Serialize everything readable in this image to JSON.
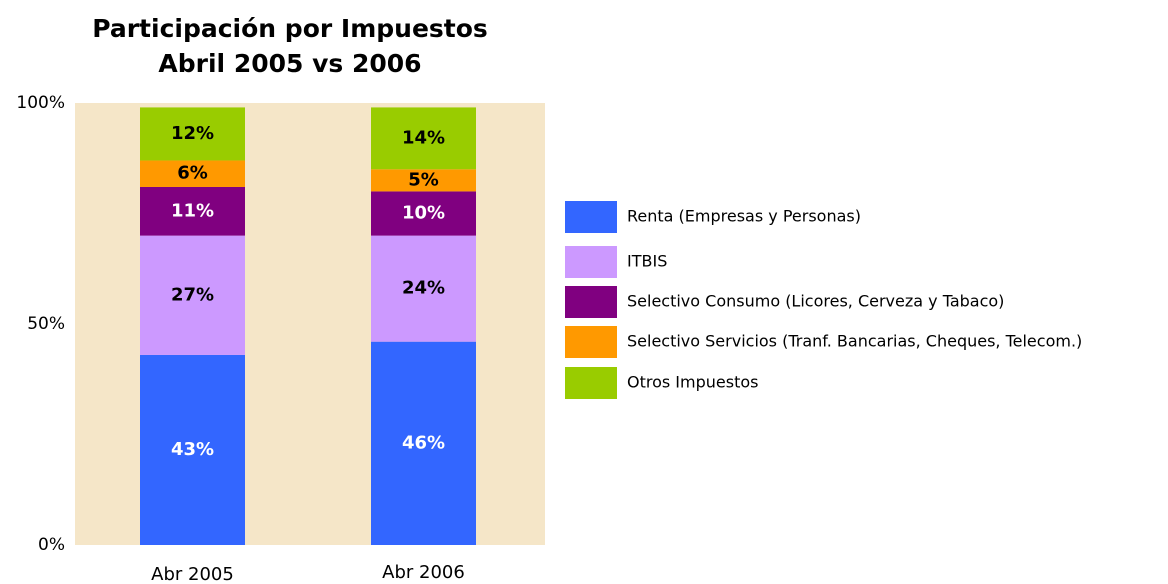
{
  "chart_data": {
    "type": "stacked_bar",
    "title": [
      "Participación por Impuestos",
      "Abril 2005 vs 2006"
    ],
    "categories": [
      "Abr 2005",
      "Abr 2006"
    ],
    "ylim": [
      0,
      100
    ],
    "yticks": [
      {
        "value": 0,
        "label": "0%"
      },
      {
        "value": 50,
        "label": "50%"
      },
      {
        "value": 100,
        "label": "100%"
      }
    ],
    "plot_background": "#f5e6c8",
    "legend": "right",
    "series": [
      {
        "name": "Renta (Empresas y Personas)",
        "color": "#3366ff",
        "values": [
          43,
          46
        ],
        "value_labels": [
          "43%",
          "46%"
        ]
      },
      {
        "name": "ITBIS",
        "color": "#cc99ff",
        "values": [
          27,
          24
        ],
        "value_labels": [
          "27%",
          "24%"
        ]
      },
      {
        "name": "Selectivo Consumo (Licores, Cerveza y Tabaco)",
        "color": "#800080",
        "values": [
          11,
          10
        ],
        "value_labels": [
          "11%",
          "10%"
        ]
      },
      {
        "name": "Selectivo Servicios (Tranf. Bancarias, Cheques, Telecom.)",
        "color": "#ff9900",
        "values": [
          6,
          5
        ],
        "value_labels": [
          "6%",
          "5%"
        ]
      },
      {
        "name": "Otros Impuestos",
        "color": "#99cc00",
        "values": [
          12,
          14
        ],
        "value_labels": [
          "12%",
          "14%"
        ]
      }
    ]
  }
}
